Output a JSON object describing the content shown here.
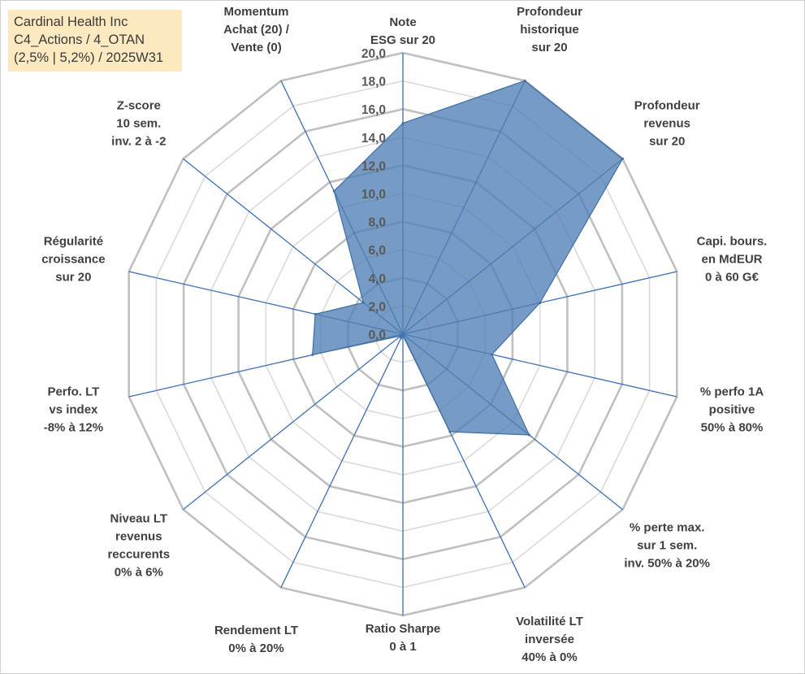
{
  "info_box": {
    "lines": [
      "Cardinal Health Inc",
      "C4_Actions / 4_OTAN",
      "(2,5% | 5,2%) / 2025W31"
    ]
  },
  "colors": {
    "fill": "#4f7fb3",
    "stroke": "#3f6ea8",
    "spoke": "#3b6fb6",
    "ring_major": "#c0c0c0",
    "ring_minor": "#dadada",
    "info_box_bg": "#fde9bf"
  },
  "chart_data": {
    "type": "radar",
    "title": "",
    "rmin": 0,
    "rmax": 20,
    "major_step": 4,
    "minor_step": 2,
    "tick_labels": [
      "0,0",
      "2,0",
      "4,0",
      "6,0",
      "8,0",
      "10,0",
      "12,0",
      "14,0",
      "16,0",
      "18,0",
      "20,0"
    ],
    "axes": [
      {
        "label": [
          "Note",
          "ESG sur 20"
        ],
        "value": 15.0
      },
      {
        "label": [
          "Profondeur",
          "historique",
          "sur 20"
        ],
        "value": 20.0
      },
      {
        "label": [
          "Profondeur",
          "revenus",
          "sur 20"
        ],
        "value": 20.0
      },
      {
        "label": [
          "Capi. bours.",
          "en MdEUR",
          "0 à 60 G€"
        ],
        "value": 10.0
      },
      {
        "label": [
          "% perfo 1A",
          "positive",
          "50% à 80%"
        ],
        "value": 6.5
      },
      {
        "label": [
          "% perte max.",
          "sur 1 sem.",
          "inv. 50% à 20%"
        ],
        "value": 11.5
      },
      {
        "label": [
          "Volatilité LT",
          "inversée",
          "40% à 0%"
        ],
        "value": 7.7
      },
      {
        "label": [
          "Ratio Sharpe",
          "0 à 1"
        ],
        "value": 0.1
      },
      {
        "label": [
          "Rendement LT",
          "0% à 20%"
        ],
        "value": 0.3
      },
      {
        "label": [
          "Niveau LT",
          "revenus",
          "reccurents",
          "0% à 6%"
        ],
        "value": 0.2
      },
      {
        "label": [
          "Perfo. LT",
          "vs index",
          "-8% à 12%"
        ],
        "value": 6.6
      },
      {
        "label": [
          "Régularité",
          "croissance",
          "sur 20"
        ],
        "value": 6.4
      },
      {
        "label": [
          "Z-score",
          "10 sem.",
          "inv. 2 à -2"
        ],
        "value": 3.6
      },
      {
        "label": [
          "Momentum",
          "Achat (20) /",
          "Vente (0)"
        ],
        "value": 11.3
      }
    ]
  }
}
